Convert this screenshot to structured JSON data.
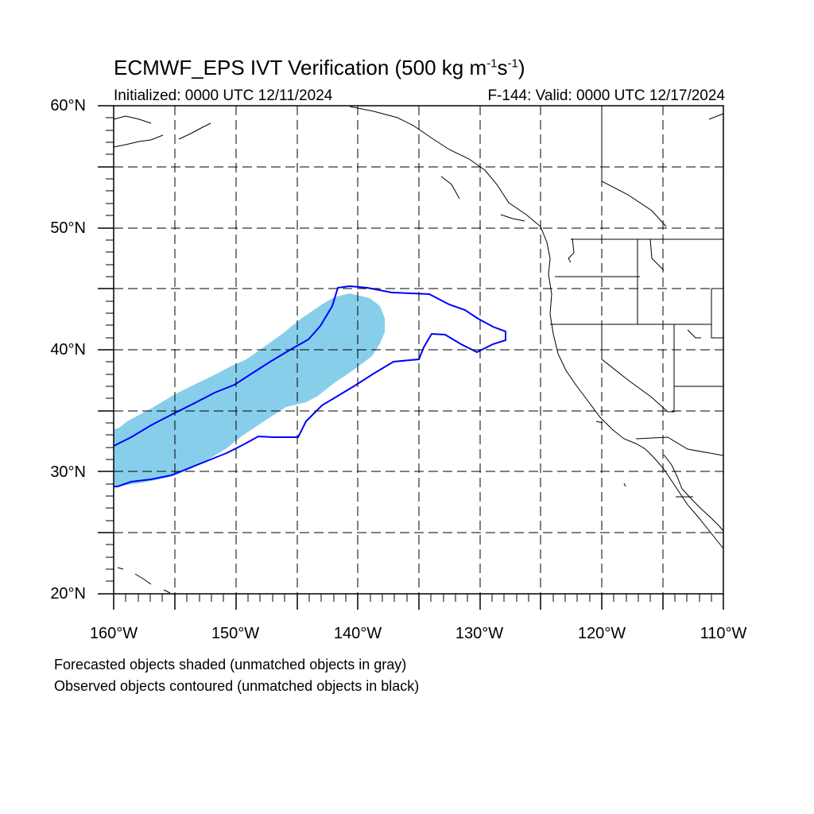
{
  "map": {
    "title": "ECMWF_EPS IVT Verification (500 kg m",
    "title_sup1": "-1",
    "title_mid": "s",
    "title_sup2": "-1",
    "title_end": ")",
    "initialized": "Initialized: 0000 UTC 12/11/2024",
    "valid": "F-144: Valid: 0000 UTC 12/17/2024",
    "lat_labels": [
      "60°N",
      "50°N",
      "40°N",
      "30°N",
      "20°N"
    ],
    "lon_labels": [
      "160°W",
      "150°W",
      "140°W",
      "130°W",
      "120°W",
      "110°W"
    ],
    "extent": {
      "lon": [
        -160,
        -110
      ],
      "lat": [
        20,
        60
      ]
    },
    "notes": [
      "Forecasted objects shaded (unmatched objects in gray)",
      "Observed objects contoured (unmatched objects in black)"
    ],
    "colors": {
      "forecast_fill": "#87ceeb",
      "observed_contour": "#0000ff",
      "coast": "#000000"
    }
  }
}
